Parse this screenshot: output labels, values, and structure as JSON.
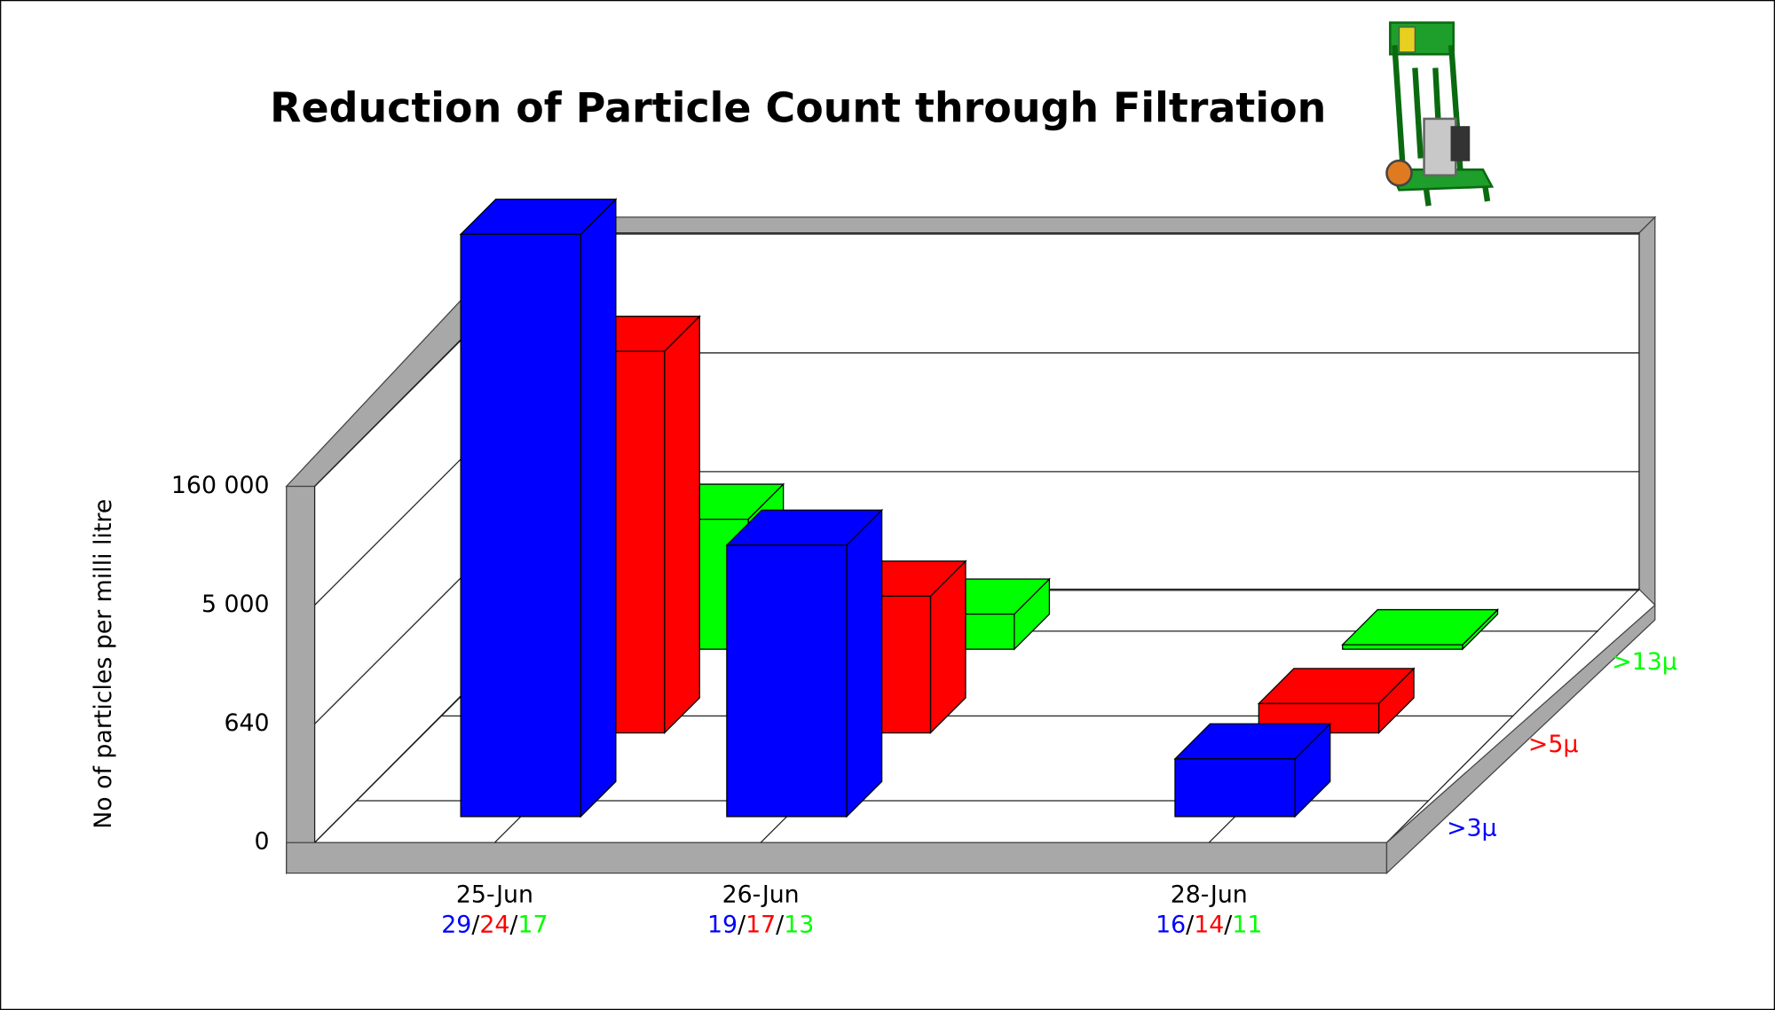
{
  "chart_data": {
    "type": "bar3d",
    "title": "Reduction of Particle Count through Filtration",
    "y_label": "No of particles per milli litre",
    "categories": [
      "25-Jun",
      "26-Jun",
      "28-Jun"
    ],
    "codes": [
      [
        29,
        24,
        17
      ],
      [
        19,
        17,
        13
      ],
      [
        16,
        14,
        11
      ]
    ],
    "code_separator": "/",
    "series": [
      {
        "name": ">3μ",
        "color": "#0000ff",
        "values": [
          455000,
          49300,
          311
        ]
      },
      {
        "name": ">5μ",
        "color": "#ff0000",
        "values": [
          193000,
          1300,
          158
        ]
      },
      {
        "name": ">13μ",
        "color": "#00ff00",
        "values": [
          1050,
          189,
          24
        ]
      }
    ],
    "ylim": [
      0,
      160000
    ],
    "yticks": [
      0,
      640,
      {
        "value": 5000,
        "label": "5 000"
      },
      {
        "value": 160000,
        "label": "160 000"
      }
    ],
    "grid": true
  }
}
